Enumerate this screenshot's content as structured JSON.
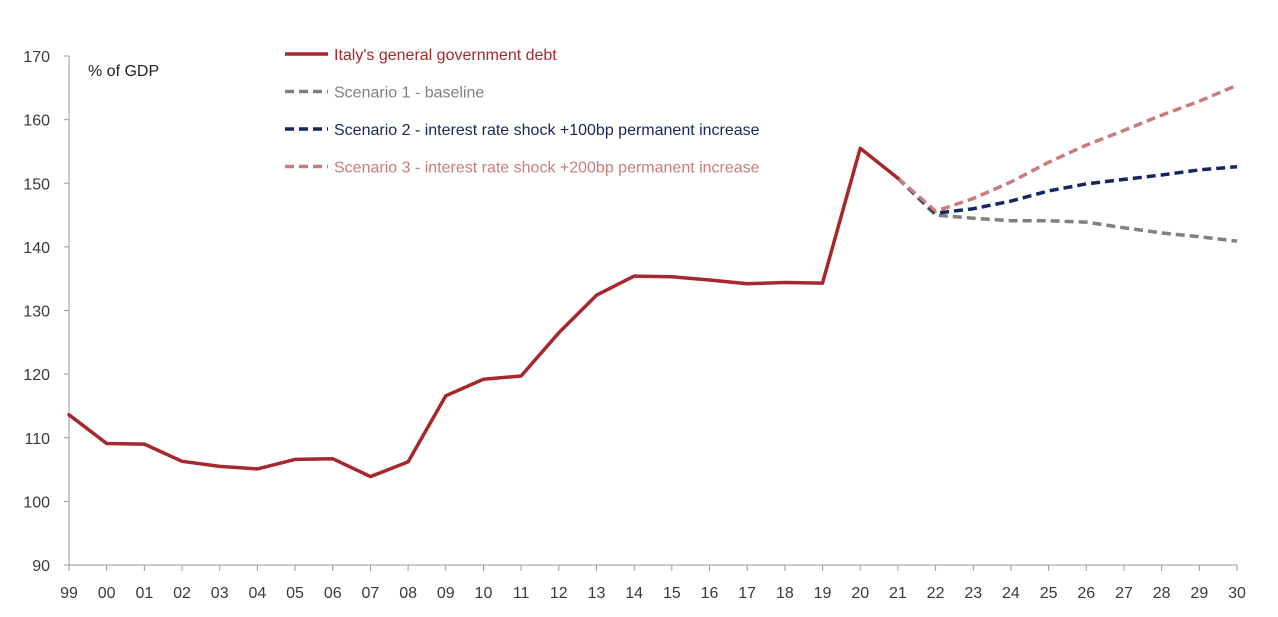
{
  "chart_data": {
    "type": "line",
    "unit_label": "% of GDP",
    "x": [
      "99",
      "00",
      "01",
      "02",
      "03",
      "04",
      "05",
      "06",
      "07",
      "08",
      "09",
      "10",
      "11",
      "12",
      "13",
      "14",
      "15",
      "16",
      "17",
      "18",
      "19",
      "20",
      "21",
      "22",
      "23",
      "24",
      "25",
      "26",
      "27",
      "28",
      "29",
      "30"
    ],
    "ylim": [
      90,
      170
    ],
    "yticks": [
      90,
      100,
      110,
      120,
      130,
      140,
      150,
      160,
      170
    ],
    "grid": false,
    "legend_position": "top-left",
    "series": [
      {
        "name": "Italy's general government debt",
        "color": "#A6282C",
        "style": "solid",
        "x": [
          "99",
          "00",
          "01",
          "02",
          "03",
          "04",
          "05",
          "06",
          "07",
          "08",
          "09",
          "10",
          "11",
          "12",
          "13",
          "14",
          "15",
          "16",
          "17",
          "18",
          "19",
          "20",
          "21"
        ],
        "values": [
          113.6,
          109.1,
          109.0,
          106.3,
          105.5,
          105.1,
          106.6,
          106.7,
          103.9,
          106.2,
          116.6,
          119.2,
          119.7,
          126.5,
          132.4,
          135.4,
          135.3,
          134.8,
          134.2,
          134.4,
          134.3,
          155.5,
          150.8
        ]
      },
      {
        "name": "Scenario 1 - baseline",
        "color": "#808080",
        "style": "dashed",
        "x": [
          "21",
          "22",
          "23",
          "24",
          "25",
          "26",
          "27",
          "28",
          "29",
          "30"
        ],
        "values": [
          150.8,
          145.0,
          144.5,
          144.1,
          144.1,
          143.9,
          143.0,
          142.2,
          141.6,
          140.9
        ]
      },
      {
        "name": "Scenario 2 - interest rate shock +100bp permanent increase",
        "color": "#14275F",
        "style": "dashed",
        "x": [
          "21",
          "22",
          "23",
          "24",
          "25",
          "26",
          "27",
          "28",
          "29",
          "30"
        ],
        "values": [
          150.8,
          145.3,
          146.0,
          147.2,
          148.8,
          149.9,
          150.6,
          151.3,
          152.1,
          152.6
        ]
      },
      {
        "name": "Scenario 3 - interest rate shock +200bp permanent increase",
        "color": "#C97C7C",
        "style": "dashed",
        "x": [
          "21",
          "22",
          "23",
          "24",
          "25",
          "26",
          "27",
          "28",
          "29",
          "30"
        ],
        "values": [
          150.8,
          145.6,
          147.6,
          150.2,
          153.3,
          156.0,
          158.3,
          160.7,
          162.9,
          165.4
        ]
      }
    ]
  }
}
